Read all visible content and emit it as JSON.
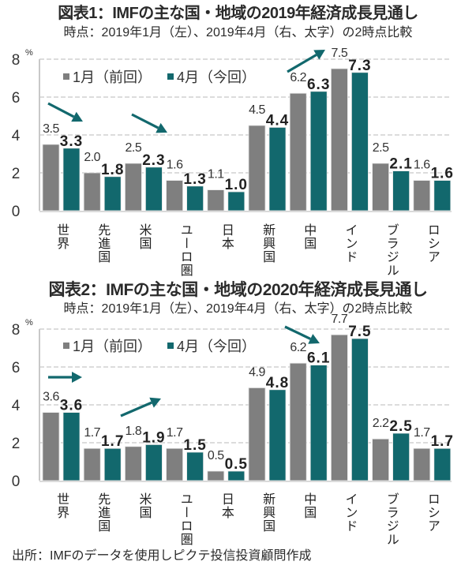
{
  "colors": {
    "jan": "#7f7f7f",
    "apr": "#12686d",
    "grid": "#d0d0d0",
    "axis": "#c8c8c8"
  },
  "chart_data": [
    {
      "type": "bar",
      "title": "図表1：IMFの主な国・地域の2019年経済成長見通し",
      "subtitle": "時点：2019年1月（左）、2019年4月（右、太字）の2時点比較",
      "xlabel": "",
      "ylabel": "%",
      "ylim": [
        0,
        8
      ],
      "yticks": [
        0,
        2,
        4,
        6,
        8
      ],
      "grid": true,
      "legend": "top-left",
      "categories": [
        "世界",
        "先進国",
        "米国",
        "ユーロ圏",
        "日本",
        "新興国",
        "中国",
        "インド",
        "ブラジル",
        "ロシア"
      ],
      "series": [
        {
          "name": "1月（前回）",
          "values": [
            3.5,
            2.0,
            2.5,
            1.6,
            1.1,
            4.5,
            6.2,
            7.5,
            2.5,
            1.6
          ]
        },
        {
          "name": "4月（今回）",
          "values": [
            3.3,
            1.8,
            2.3,
            1.3,
            1.0,
            4.4,
            6.3,
            7.3,
            2.1,
            1.6
          ]
        }
      ],
      "annotations": [
        {
          "type": "arrow",
          "direction": "down-right"
        },
        {
          "type": "arrow",
          "direction": "down-right"
        },
        {
          "type": "arrow",
          "direction": "up-right"
        }
      ]
    },
    {
      "type": "bar",
      "title": "図表2：IMFの主な国・地域の2020年経済成長見通し",
      "subtitle": "時点：2019年1月（左）、2019年4月（右、太字）の2時点比較",
      "xlabel": "",
      "ylabel": "%",
      "ylim": [
        0,
        8
      ],
      "yticks": [
        0,
        2,
        4,
        6,
        8
      ],
      "grid": true,
      "legend": "top-left",
      "categories": [
        "世界",
        "先進国",
        "米国",
        "ユーロ圏",
        "日本",
        "新興国",
        "中国",
        "インド",
        "ブラジル",
        "ロシア"
      ],
      "series": [
        {
          "name": "1月（前回）",
          "values": [
            3.6,
            1.7,
            1.8,
            1.7,
            0.5,
            4.9,
            6.2,
            7.7,
            2.2,
            1.7
          ]
        },
        {
          "name": "4月（今回）",
          "values": [
            3.6,
            1.7,
            1.9,
            1.5,
            0.5,
            4.8,
            6.1,
            7.5,
            2.5,
            1.7
          ]
        }
      ],
      "annotations": [
        {
          "type": "arrow",
          "direction": "right"
        },
        {
          "type": "arrow",
          "direction": "up-right"
        },
        {
          "type": "arrow",
          "direction": "down-right"
        }
      ]
    }
  ],
  "source": "出所：IMFのデータを使用しピクテ投信投資顧問作成"
}
